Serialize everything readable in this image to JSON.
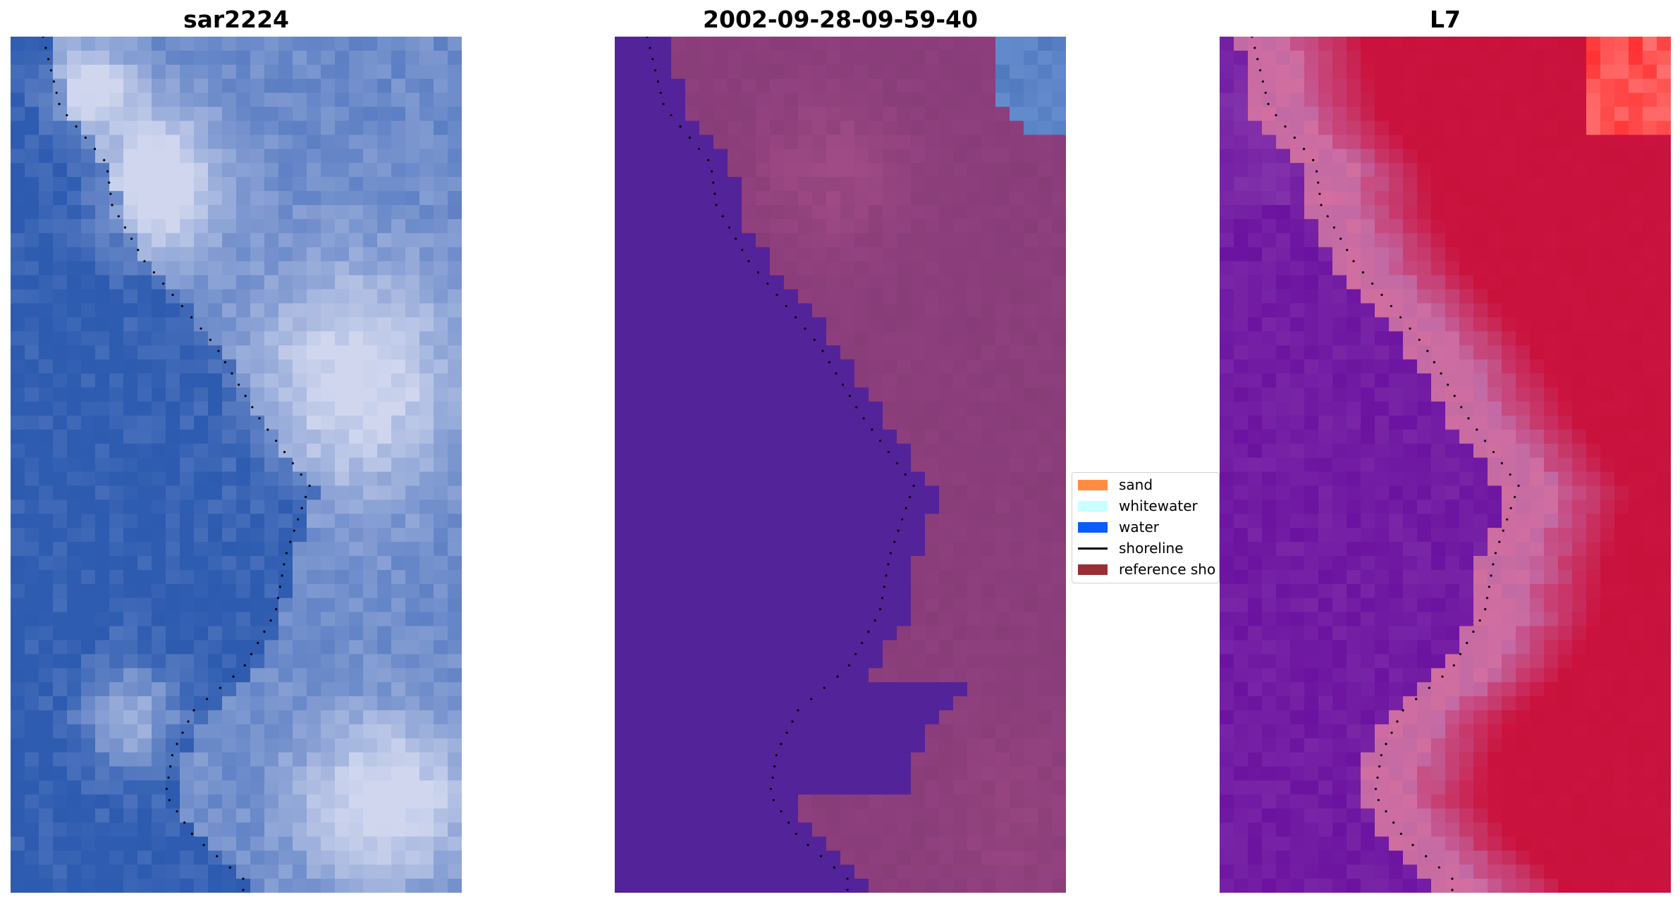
{
  "panels": [
    {
      "title": "sar2224",
      "scheme": "rgb"
    },
    {
      "title": "2002-09-28-09-59-40",
      "scheme": "classified"
    },
    {
      "title": "L7",
      "scheme": "index"
    }
  ],
  "legend": {
    "items": [
      {
        "label": "sand",
        "color": "#ff8c42",
        "kind": "patch"
      },
      {
        "label": "whitewater",
        "color": "#c8ffff",
        "kind": "patch"
      },
      {
        "label": "water",
        "color": "#0a5cff",
        "kind": "patch"
      },
      {
        "label": "shoreline",
        "color": "#000000",
        "kind": "line"
      },
      {
        "label": "reference sho",
        "color": "#9a2e35",
        "kind": "patch"
      }
    ]
  },
  "colors": {
    "water_class": "#53239a",
    "land_class": "#8e3f7e",
    "land_class_light": "#b5588f",
    "sar_water": "#2d5bb0",
    "sar_cloud": "#cfd6ee",
    "l7_water": "#6b12a0",
    "l7_land": "#c8123c",
    "l7_transition": "#c26aa4",
    "shoreline_dots": "#000000"
  }
}
